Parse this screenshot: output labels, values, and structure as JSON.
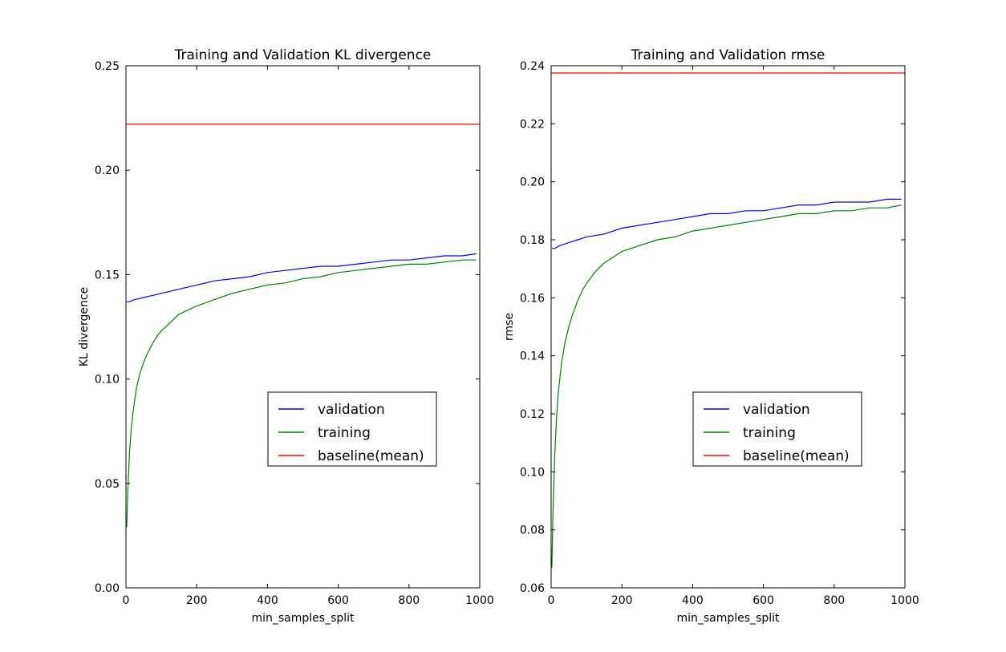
{
  "chart_data": [
    {
      "type": "line",
      "title": "Training and Validation KL divergence",
      "xlabel": "min_samples_split",
      "ylabel": "KL divergence",
      "xlim": [
        0,
        1000
      ],
      "ylim": [
        0.0,
        0.25
      ],
      "xticks": [
        0,
        200,
        400,
        600,
        800,
        1000
      ],
      "xtick_labels": [
        "0",
        "200",
        "400",
        "600",
        "800",
        "1000"
      ],
      "yticks": [
        0.0,
        0.05,
        0.1,
        0.15,
        0.2,
        0.25
      ],
      "ytick_labels": [
        "0.00",
        "0.05",
        "0.10",
        "0.15",
        "0.20",
        "0.25"
      ],
      "grid": false,
      "legend_position": "lower-right",
      "series": [
        {
          "name": "validation",
          "color": "#0000ff",
          "x": [
            2,
            10,
            25,
            50,
            75,
            100,
            150,
            200,
            250,
            300,
            350,
            400,
            450,
            500,
            550,
            600,
            650,
            700,
            750,
            800,
            850,
            900,
            950,
            990
          ],
          "y": [
            0.137,
            0.137,
            0.138,
            0.139,
            0.14,
            0.141,
            0.143,
            0.145,
            0.147,
            0.148,
            0.149,
            0.151,
            0.152,
            0.153,
            0.154,
            0.154,
            0.155,
            0.156,
            0.157,
            0.157,
            0.158,
            0.159,
            0.159,
            0.16
          ]
        },
        {
          "name": "training",
          "color": "#008000",
          "x": [
            2,
            5,
            10,
            15,
            20,
            30,
            40,
            50,
            60,
            75,
            90,
            100,
            125,
            150,
            175,
            200,
            250,
            300,
            350,
            400,
            450,
            500,
            550,
            600,
            650,
            700,
            750,
            800,
            850,
            900,
            950,
            990
          ],
          "y": [
            0.029,
            0.045,
            0.065,
            0.076,
            0.084,
            0.096,
            0.103,
            0.108,
            0.112,
            0.117,
            0.121,
            0.123,
            0.127,
            0.131,
            0.133,
            0.135,
            0.138,
            0.141,
            0.143,
            0.145,
            0.146,
            0.148,
            0.149,
            0.151,
            0.152,
            0.153,
            0.154,
            0.155,
            0.155,
            0.156,
            0.157,
            0.157
          ]
        },
        {
          "name": "baseline(mean)",
          "color": "#ff0000",
          "x": [
            0,
            1000
          ],
          "y": [
            0.222,
            0.222
          ]
        }
      ]
    },
    {
      "type": "line",
      "title": "Training and Validation rmse",
      "xlabel": "min_samples_split",
      "ylabel": "rmse",
      "xlim": [
        0,
        1000
      ],
      "ylim": [
        0.06,
        0.24
      ],
      "xticks": [
        0,
        200,
        400,
        600,
        800,
        1000
      ],
      "xtick_labels": [
        "0",
        "200",
        "400",
        "600",
        "800",
        "1000"
      ],
      "yticks": [
        0.06,
        0.08,
        0.1,
        0.12,
        0.14,
        0.16,
        0.18,
        0.2,
        0.22,
        0.24
      ],
      "ytick_labels": [
        "0.06",
        "0.08",
        "0.10",
        "0.12",
        "0.14",
        "0.16",
        "0.18",
        "0.20",
        "0.22",
        "0.24"
      ],
      "grid": false,
      "legend_position": "lower-right",
      "series": [
        {
          "name": "validation",
          "color": "#0000ff",
          "x": [
            2,
            10,
            25,
            50,
            75,
            100,
            150,
            200,
            250,
            300,
            350,
            400,
            450,
            500,
            550,
            600,
            650,
            700,
            750,
            800,
            850,
            900,
            950,
            990
          ],
          "y": [
            0.177,
            0.177,
            0.178,
            0.179,
            0.18,
            0.181,
            0.182,
            0.184,
            0.185,
            0.186,
            0.187,
            0.188,
            0.189,
            0.189,
            0.19,
            0.19,
            0.191,
            0.192,
            0.192,
            0.193,
            0.193,
            0.193,
            0.194,
            0.194
          ]
        },
        {
          "name": "training",
          "color": "#008000",
          "x": [
            2,
            5,
            10,
            15,
            20,
            30,
            40,
            50,
            60,
            75,
            90,
            100,
            125,
            150,
            175,
            200,
            250,
            300,
            350,
            400,
            450,
            500,
            550,
            600,
            650,
            700,
            750,
            800,
            850,
            900,
            950,
            990
          ],
          "y": [
            0.067,
            0.085,
            0.105,
            0.118,
            0.127,
            0.138,
            0.145,
            0.15,
            0.154,
            0.159,
            0.163,
            0.165,
            0.169,
            0.172,
            0.174,
            0.176,
            0.178,
            0.18,
            0.181,
            0.183,
            0.184,
            0.185,
            0.186,
            0.187,
            0.188,
            0.189,
            0.189,
            0.19,
            0.19,
            0.191,
            0.191,
            0.192
          ]
        },
        {
          "name": "baseline(mean)",
          "color": "#ff0000",
          "x": [
            0,
            1000
          ],
          "y": [
            0.2375,
            0.2375
          ]
        }
      ]
    }
  ]
}
